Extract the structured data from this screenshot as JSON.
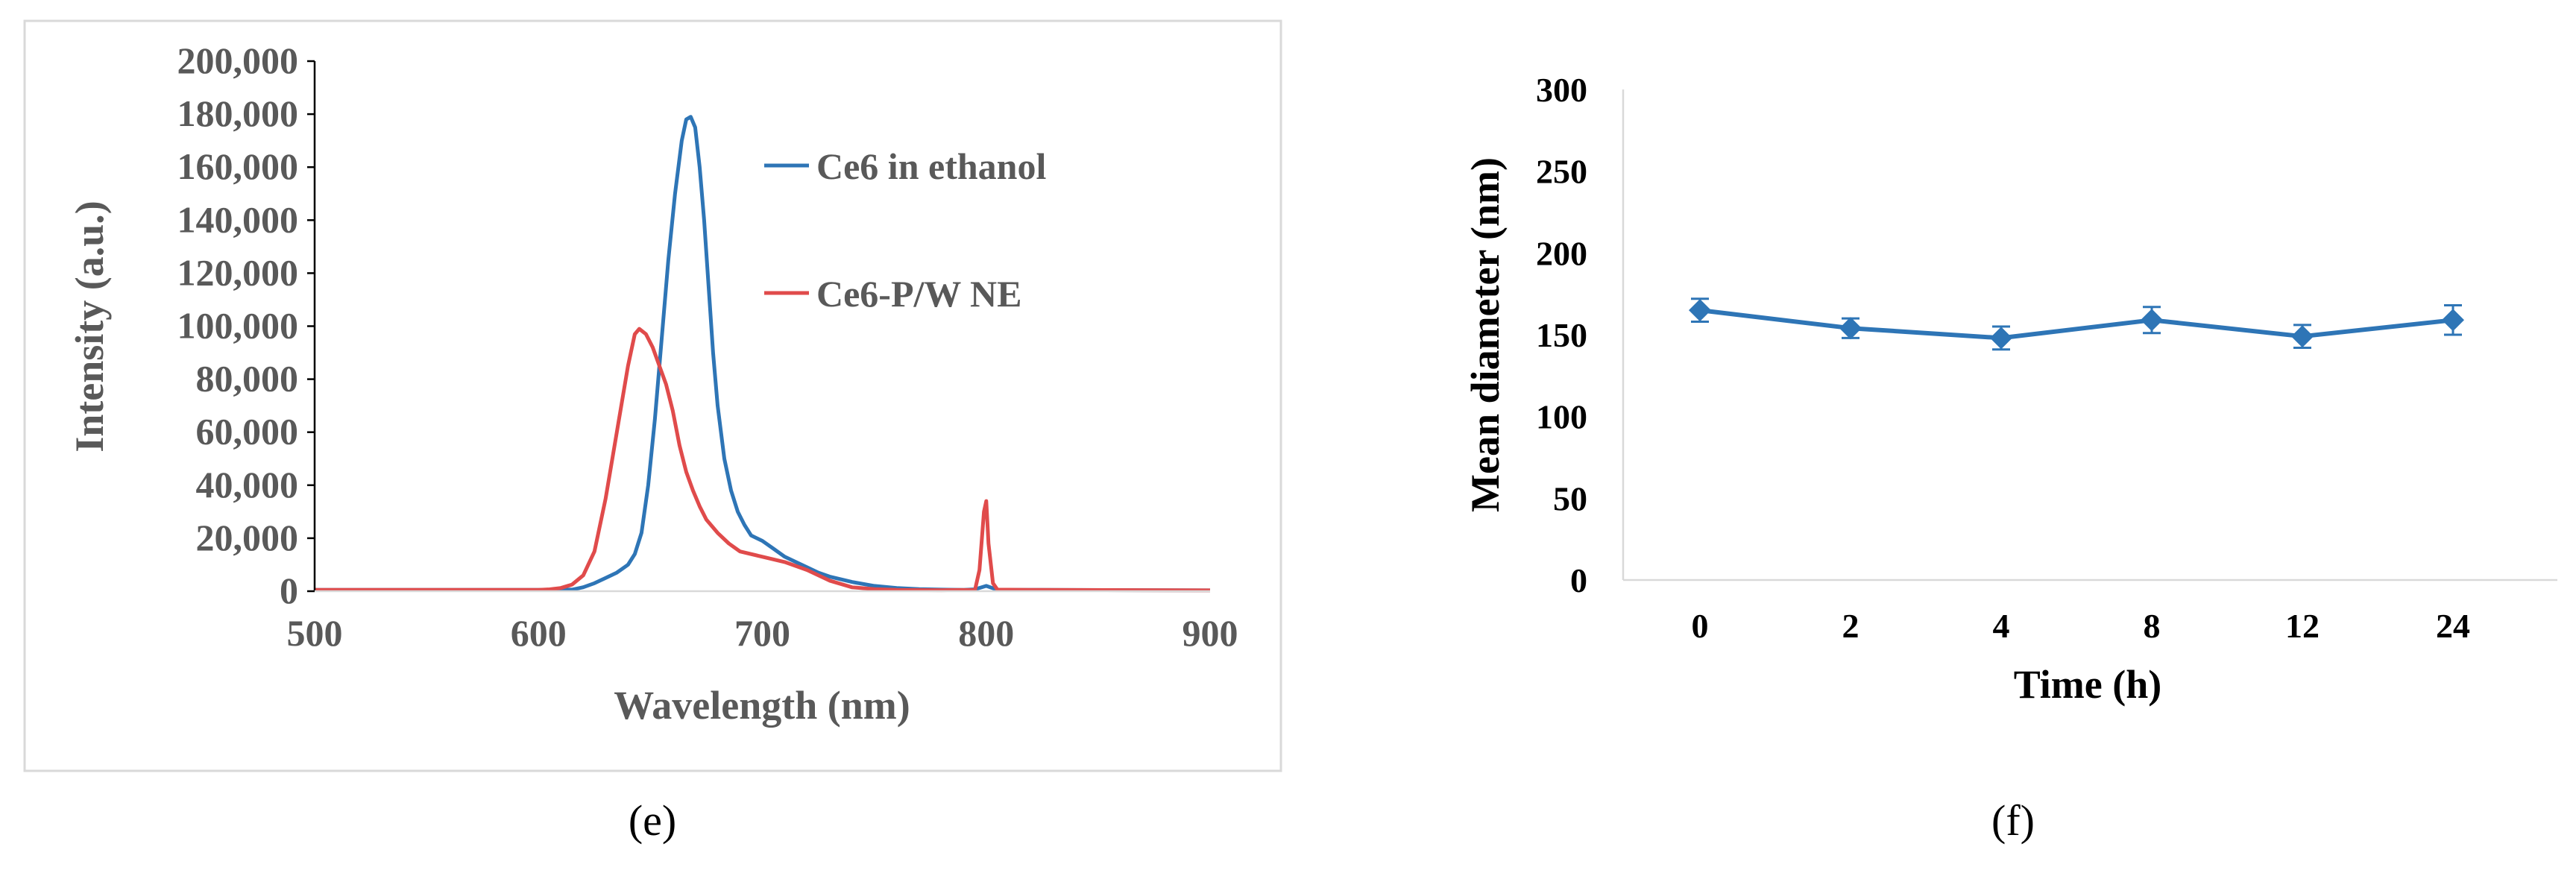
{
  "chart_data": [
    {
      "type": "line",
      "panel_label": "(e)",
      "xlabel": "Wavelength  (nm)",
      "ylabel": "Intensity (a.u.)",
      "xlim": [
        500,
        900
      ],
      "ylim": [
        0,
        200000
      ],
      "x_ticks": [
        500,
        600,
        700,
        800,
        900
      ],
      "y_ticks": [
        0,
        20000,
        40000,
        60000,
        80000,
        100000,
        120000,
        140000,
        160000,
        180000,
        200000
      ],
      "x_tick_labels": [
        "500",
        "600",
        "700",
        "800",
        "900"
      ],
      "y_tick_labels": [
        "0",
        "20,000",
        "40,000",
        "60,000",
        "80,000",
        "100,000",
        "120,000",
        "140,000",
        "160,000",
        "180,000",
        "200,000"
      ],
      "legend_position": "top-right-inside",
      "grid": false,
      "series": [
        {
          "name": "Ce6 in ethanol",
          "color": "#2E75B6",
          "x": [
            500,
            600,
            615,
            620,
            625,
            630,
            635,
            640,
            643,
            646,
            649,
            652,
            655,
            658,
            661,
            664,
            666,
            668,
            670,
            672,
            674,
            676,
            678,
            680,
            683,
            686,
            689,
            692,
            695,
            700,
            705,
            710,
            715,
            720,
            725,
            730,
            740,
            750,
            760,
            770,
            780,
            790,
            795,
            800,
            805,
            820,
            900
          ],
          "y": [
            500,
            500,
            600,
            1500,
            3000,
            5000,
            7000,
            10000,
            14000,
            22000,
            40000,
            65000,
            95000,
            125000,
            150000,
            170000,
            178000,
            179000,
            175000,
            160000,
            140000,
            115000,
            90000,
            70000,
            50000,
            38000,
            30000,
            25000,
            21000,
            19000,
            16000,
            13000,
            11000,
            9000,
            7000,
            5500,
            3500,
            2000,
            1200,
            800,
            600,
            500,
            700,
            2000,
            500,
            500,
            300
          ]
        },
        {
          "name": "Ce6-P/W NE",
          "color": "#E04B4B",
          "x": [
            500,
            600,
            605,
            610,
            615,
            620,
            625,
            630,
            635,
            640,
            643,
            645,
            648,
            651,
            654,
            657,
            660,
            663,
            666,
            669,
            672,
            675,
            680,
            685,
            690,
            700,
            710,
            720,
            730,
            740,
            750,
            760,
            780,
            795,
            797,
            799,
            800,
            801,
            803,
            805,
            820,
            900
          ],
          "y": [
            500,
            500,
            700,
            1200,
            2500,
            6000,
            15000,
            35000,
            60000,
            85000,
            97000,
            99000,
            97000,
            92000,
            85000,
            78000,
            68000,
            55000,
            45000,
            38000,
            32000,
            27000,
            22000,
            18000,
            15000,
            13000,
            11000,
            8000,
            4000,
            1500,
            800,
            500,
            400,
            500,
            8000,
            30000,
            34000,
            18000,
            3000,
            600,
            500,
            300
          ]
        }
      ]
    },
    {
      "type": "line",
      "panel_label": "(f)",
      "xlabel": "Time  (h)",
      "ylabel": "Mean diameter (nm)",
      "categories": [
        "0",
        "2",
        "4",
        "8",
        "12",
        "24"
      ],
      "ylim": [
        0,
        300
      ],
      "y_ticks": [
        0,
        50,
        100,
        150,
        200,
        250,
        300
      ],
      "grid": false,
      "series": [
        {
          "name": "Mean diameter",
          "color": "#2E75B6",
          "values": [
            165,
            154,
            148,
            159,
            149,
            159
          ],
          "errors": [
            7,
            6,
            7,
            8,
            7,
            9
          ]
        }
      ]
    }
  ]
}
